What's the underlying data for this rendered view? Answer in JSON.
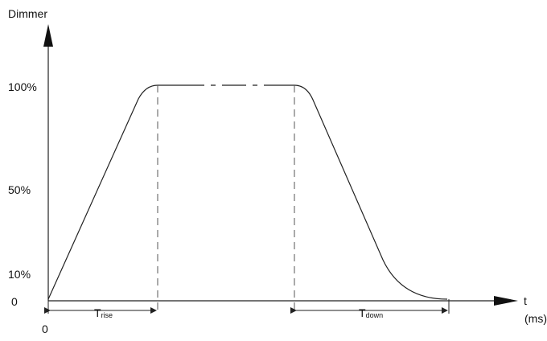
{
  "diagram": {
    "y_axis_label": "Dimmer",
    "x_axis_label_t": "t",
    "x_axis_label_unit": "(ms)",
    "origin_label": "0",
    "y_levels": [
      {
        "label": "100%"
      },
      {
        "label": "50%"
      },
      {
        "label": "10%"
      },
      {
        "label": "0"
      }
    ],
    "t_rise": {
      "main": "T",
      "sub": "rise"
    },
    "t_down": {
      "main": "T",
      "sub": "down"
    }
  },
  "colors": {
    "line": "#222222",
    "dash": "#555555"
  }
}
